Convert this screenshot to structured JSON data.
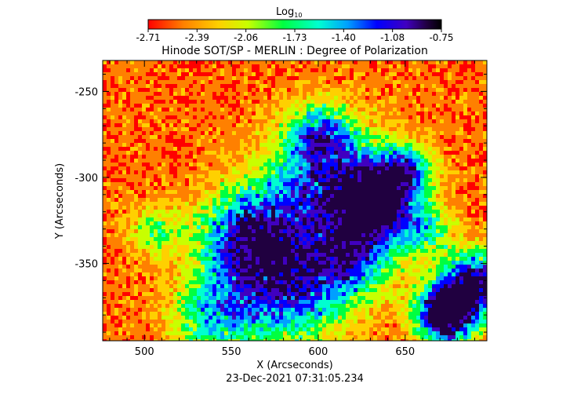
{
  "colorbar": {
    "label_main": "Log",
    "label_sub": "10",
    "ticks": [
      "-2.71",
      "-2.39",
      "-2.06",
      "-1.73",
      "-1.40",
      "-1.08",
      "-0.75"
    ],
    "range": [
      -2.71,
      -0.75
    ],
    "colormap": [
      "#ff0000",
      "#ff8000",
      "#ffd000",
      "#c8ff00",
      "#00ff40",
      "#00ffd0",
      "#00a0ff",
      "#0000ff",
      "#4000c0",
      "#200040",
      "#000000"
    ]
  },
  "chart_data": {
    "type": "heatmap",
    "title": "Hinode SOT/SP - MERLIN : Degree of Polarization",
    "xlabel": "X (Arcseconds)",
    "ylabel": "Y (Arcseconds)",
    "xlim": [
      476,
      697
    ],
    "ylim": [
      -395,
      -232
    ],
    "xticks": [
      500,
      550,
      600,
      650
    ],
    "yticks": [
      -250,
      -300,
      -350
    ],
    "quantity": "log10 degree of polarization",
    "footer": "23-Dec-2021 07:31:05.234"
  }
}
